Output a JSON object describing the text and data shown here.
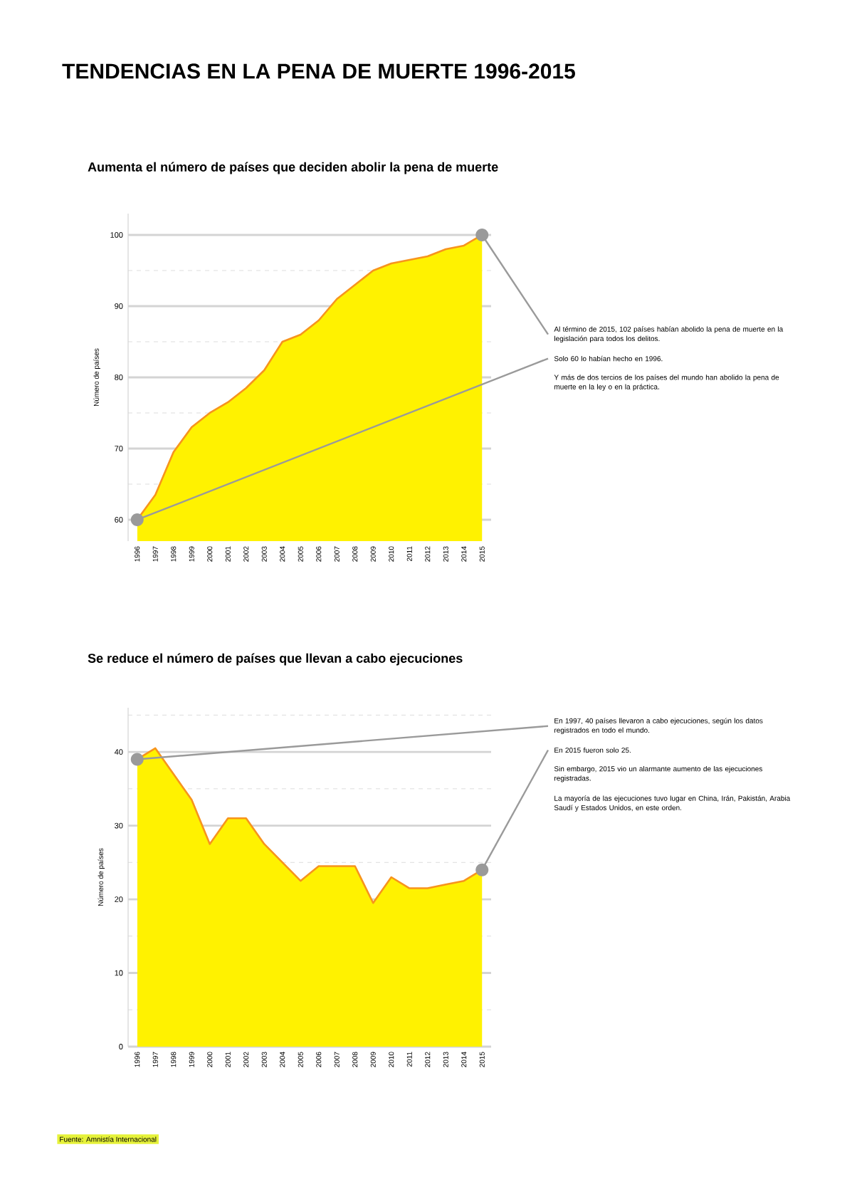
{
  "chart_data": [
    {
      "type": "area",
      "title": "TENDENCIAS EN LA PENA DE MUERTE 1996-2015",
      "subtitle": "Aumenta el número de países que deciden abolir la pena de muerte",
      "ylabel": "Número de países",
      "categories": [
        "1996",
        "1997",
        "1998",
        "1999",
        "2000",
        "2001",
        "2002",
        "2003",
        "2004",
        "2005",
        "2006",
        "2007",
        "2008",
        "2009",
        "2010",
        "2011",
        "2012",
        "2013",
        "2014",
        "2015"
      ],
      "series": [
        {
          "color": "#fff200",
          "values": [
            60,
            63.5,
            69.5,
            73,
            75,
            76.5,
            78.5,
            81,
            85,
            86,
            88,
            91,
            93,
            95,
            96,
            96.5,
            97,
            98,
            98.5,
            100
          ]
        }
      ],
      "ylim": [
        57,
        103
      ],
      "yticks": [
        60,
        {
          "value": 65,
          "label": null
        },
        70,
        {
          "value": 75,
          "label": null
        },
        80,
        {
          "value": 85,
          "label": null
        },
        90,
        {
          "value": 95,
          "label": null
        },
        100
      ],
      "grid": "y",
      "annotations": [
        {
          "text": "Al término de 2015, 102 países habían abolido la pena de muerte en la legislación para todos los delitos.",
          "x": "2015",
          "y": 100
        },
        {
          "text": "Solo 60 lo habían hecho en 1996.",
          "x": "1996",
          "y": 60
        },
        "Y más de dos tercios de los países del mundo han abolido la pena de muerte en la ley o en la práctica."
      ]
    },
    {
      "type": "area",
      "title": "Se reduce el número de países que llevan a cabo ejecuciones",
      "ylabel": "Número de países",
      "categories": [
        "1996",
        "1997",
        "1998",
        "1999",
        "2000",
        "2001",
        "2002",
        "2003",
        "2004",
        "2005",
        "2006",
        "2007",
        "2008",
        "2009",
        "2010",
        "2011",
        "2012",
        "2013",
        "2014",
        "2015"
      ],
      "series": [
        {
          "color": "#fff200",
          "values": [
            39,
            40.5,
            37,
            33.5,
            27.5,
            31,
            31,
            27.5,
            25,
            22.5,
            24.5,
            24.5,
            24.5,
            19.5,
            23,
            21.5,
            21.5,
            22,
            22.5,
            24
          ]
        }
      ],
      "ylim": [
        0,
        46
      ],
      "yticks": [
        0,
        {
          "value": 5,
          "label": null
        },
        10,
        {
          "value": 15,
          "label": null
        },
        20,
        {
          "value": 25,
          "label": null
        },
        30,
        {
          "value": 35,
          "label": null
        },
        40,
        {
          "value": 45,
          "label": null
        }
      ],
      "grid": "y",
      "annotations": [
        {
          "text": "En 1997, 40 países llevaron a cabo ejecuciones, según los datos registrados en todo el mundo.",
          "x": "1996",
          "y": 39
        },
        {
          "text": "En 2015 fueron solo 25.",
          "x": "2015",
          "y": 24
        },
        "Sin embargo, 2015 vio un alarmante aumento de las ejecuciones registradas.",
        "La mayoría de las ejecuciones tuvo lugar en China, Irán, Pakistán, Arabia Saudí y Estados Unidos, en este orden.",
        "Fuente: Amnistía Internacional"
      ]
    }
  ]
}
